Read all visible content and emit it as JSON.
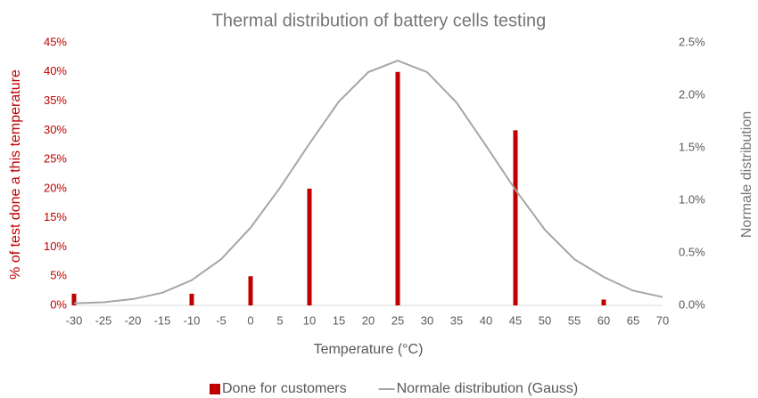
{
  "chart_data": {
    "type": "combo",
    "title": "Thermal distribution of battery cells testing",
    "x_label": "Temperature (°C)",
    "y_label": "% of test done a this temperature",
    "y2_label": "Normale distribution",
    "xlim": [
      -30,
      70
    ],
    "xticks": [
      -30,
      -25,
      -20,
      -15,
      -10,
      -5,
      0,
      5,
      10,
      15,
      20,
      25,
      30,
      35,
      40,
      45,
      50,
      55,
      60,
      65,
      70
    ],
    "ylim": [
      0,
      45
    ],
    "yticks": [
      {
        "value": 0,
        "label": "0%"
      },
      {
        "value": 5,
        "label": "5%"
      },
      {
        "value": 10,
        "label": "10%"
      },
      {
        "value": 15,
        "label": "15%"
      },
      {
        "value": 20,
        "label": "20%"
      },
      {
        "value": 25,
        "label": "25%"
      },
      {
        "value": 30,
        "label": "30%"
      },
      {
        "value": 35,
        "label": "35%"
      },
      {
        "value": 40,
        "label": "40%"
      },
      {
        "value": 45,
        "label": "45%"
      }
    ],
    "y2lim": [
      0,
      2.5
    ],
    "y2ticks": [
      {
        "value": 0,
        "label": "0.0%"
      },
      {
        "value": 0.5,
        "label": "0.5%"
      },
      {
        "value": 1,
        "label": "1.0%"
      },
      {
        "value": 1.5,
        "label": "1.5%"
      },
      {
        "value": 2,
        "label": "2.0%"
      },
      {
        "value": 2.5,
        "label": "2.5%"
      }
    ],
    "legend": "bottom",
    "series": [
      {
        "name": "Done for customers",
        "type": "bar",
        "color": "#c00000",
        "x": [
          -30,
          -10,
          0,
          10,
          25,
          45,
          60
        ],
        "values": [
          2,
          2,
          5,
          20,
          40,
          30,
          1
        ]
      },
      {
        "name": "Normale distribution (Gauss)",
        "type": "line",
        "axis": "y2",
        "color": "#a6a6a6",
        "x": [
          -30,
          -25,
          -20,
          -15,
          -10,
          -5,
          0,
          5,
          10,
          15,
          20,
          25,
          30,
          35,
          40,
          45,
          50,
          55,
          60,
          65,
          70
        ],
        "values": [
          0.02,
          0.03,
          0.06,
          0.12,
          0.24,
          0.44,
          0.74,
          1.12,
          1.54,
          1.94,
          2.22,
          2.33,
          2.22,
          1.93,
          1.52,
          1.1,
          0.72,
          0.44,
          0.27,
          0.14,
          0.08
        ]
      }
    ]
  }
}
